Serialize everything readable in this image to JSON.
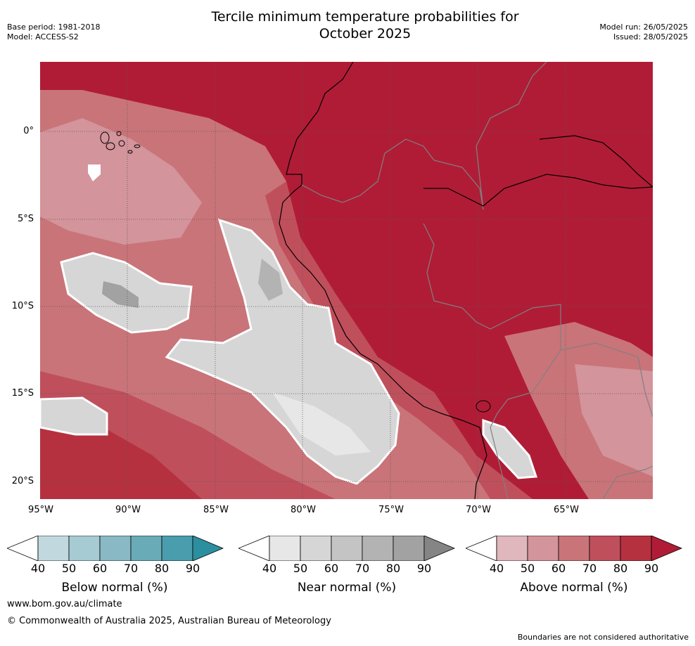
{
  "title_line1": "Tercile minimum temperature probabilities for",
  "title_line2": "October 2025",
  "meta_left": {
    "base_period": "Base period: 1981-2018",
    "model": "Model: ACCESS-S2"
  },
  "meta_right": {
    "model_run": "Model run: 26/05/2025",
    "issued": "Issued: 28/05/2025"
  },
  "lat_labels": [
    "0°",
    "5°S",
    "10°S",
    "15°S",
    "20°S"
  ],
  "lon_labels": [
    "95°W",
    "90°W",
    "85°W",
    "80°W",
    "75°W",
    "70°W",
    "65°W"
  ],
  "colorbars": [
    {
      "label": "Below normal (%)",
      "ticks": [
        "40",
        "50",
        "60",
        "70",
        "80",
        "90"
      ],
      "colors": [
        "#ffffff",
        "#c1d9de",
        "#a6cbd2",
        "#89b9c4",
        "#6aabb8",
        "#4a9dac",
        "#2b8fa0"
      ]
    },
    {
      "label": "Near normal (%)",
      "ticks": [
        "40",
        "50",
        "60",
        "70",
        "80",
        "90"
      ],
      "colors": [
        "#ffffff",
        "#e7e7e7",
        "#d6d6d6",
        "#c4c4c4",
        "#b3b3b3",
        "#a2a2a2",
        "#858585"
      ]
    },
    {
      "label": "Above normal (%)",
      "ticks": [
        "40",
        "50",
        "60",
        "70",
        "80",
        "90"
      ],
      "colors": [
        "#ffffff",
        "#e0b7bc",
        "#d3949b",
        "#c97479",
        "#c04f5c",
        "#b6313f",
        "#b01c36"
      ]
    }
  ],
  "footer": {
    "url": "www.bom.gov.au/climate",
    "copyright": "© Commonwealth of Australia 2025, Australian Bureau of Meteorology",
    "note": "Boundaries are not considered authoritative"
  }
}
